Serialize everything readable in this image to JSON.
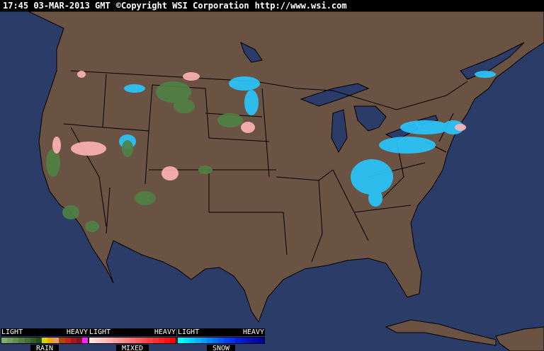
{
  "header": {
    "time": "17:45 03-MAR-2013 GMT",
    "copyright": "©Copyright WSI Corporation",
    "url": "http://www.wsi.com"
  },
  "map": {
    "ocean_color": "#2c3c68",
    "land_color": "#6b5344",
    "border_color": "#000000"
  },
  "legend": [
    {
      "name": "RAIN",
      "light": "LIGHT",
      "heavy": "HEAVY",
      "colors": [
        "#80b070",
        "#70a060",
        "#609050",
        "#508040",
        "#407035",
        "#306028",
        "#204f18",
        "#d8d800",
        "#f0a800",
        "#e0a070",
        "#b04800",
        "#c82020",
        "#a81818",
        "#901020",
        "#ff20ff"
      ]
    },
    {
      "name": "MIXED",
      "light": "LIGHT",
      "heavy": "HEAVY",
      "colors": [
        "#ffe0e0",
        "#ffd0d0",
        "#ffc0c0",
        "#ffb0b0",
        "#ffa0a0",
        "#ff9090",
        "#ff8080",
        "#ff7070",
        "#ff6060",
        "#ff5050",
        "#ff4040",
        "#ff3030",
        "#ff2020",
        "#ff1010",
        "#ff0000"
      ]
    },
    {
      "name": "SNOW",
      "light": "LIGHT",
      "heavy": "HEAVY",
      "colors": [
        "#00ffff",
        "#00e8ff",
        "#00d0ff",
        "#00b8ff",
        "#00a0ff",
        "#0088ff",
        "#0070ff",
        "#0058ff",
        "#0040ff",
        "#0030f0",
        "#0020e0",
        "#0018d0",
        "#0010c0",
        "#0008b0",
        "#0000a0"
      ]
    }
  ]
}
